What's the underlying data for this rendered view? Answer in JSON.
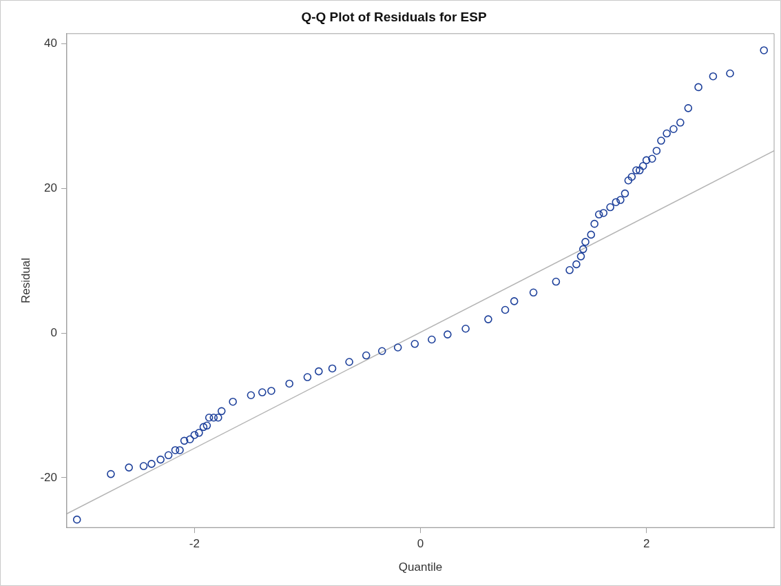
{
  "chart_data": {
    "type": "scatter",
    "title": "Q-Q Plot of Residuals for ESP",
    "xlabel": "Quantile",
    "ylabel": "Residual",
    "xlim": [
      -3.13,
      3.13
    ],
    "ylim": [
      -26.9,
      41.4
    ],
    "xticks": [
      -2,
      0,
      2
    ],
    "yticks": [
      -20,
      0,
      20,
      40
    ],
    "grid": false,
    "legend": false,
    "series": [
      {
        "color": "#1c3f9a",
        "marker": "circle",
        "x": [
          -3.04,
          -2.74,
          -2.58,
          -2.45,
          -2.38,
          -2.3,
          -2.23,
          -2.17,
          -2.13,
          -2.09,
          -2.04,
          -2.0,
          -1.96,
          -1.92,
          -1.89,
          -1.87,
          -1.83,
          -1.79,
          -1.76,
          -1.66,
          -1.5,
          -1.4,
          -1.32,
          -1.16,
          -1.0,
          -0.9,
          -0.78,
          -0.63,
          -0.48,
          -0.34,
          -0.2,
          -0.05,
          0.1,
          0.24,
          0.4,
          0.6,
          0.75,
          0.83,
          1.0,
          1.2,
          1.32,
          1.38,
          1.42,
          1.44,
          1.46,
          1.51,
          1.54,
          1.58,
          1.62,
          1.68,
          1.73,
          1.77,
          1.81,
          1.84,
          1.87,
          1.91,
          1.94,
          1.97,
          2.0,
          2.05,
          2.09,
          2.13,
          2.18,
          2.24,
          2.3,
          2.37,
          2.46,
          2.59,
          2.74,
          3.04
        ],
        "values": [
          -25.8,
          -19.5,
          -18.6,
          -18.4,
          -18.1,
          -17.5,
          -16.9,
          -16.2,
          -16.2,
          -14.9,
          -14.7,
          -14.1,
          -13.8,
          -13.0,
          -12.8,
          -11.7,
          -11.7,
          -11.7,
          -10.8,
          -9.5,
          -8.6,
          -8.2,
          -8.0,
          -7.0,
          -6.1,
          -5.3,
          -4.9,
          -4.0,
          -3.1,
          -2.5,
          -2.0,
          -1.5,
          -0.9,
          -0.2,
          0.6,
          1.9,
          3.2,
          4.4,
          5.6,
          7.1,
          8.7,
          9.5,
          10.6,
          11.6,
          12.6,
          13.6,
          15.1,
          16.4,
          16.6,
          17.4,
          18.1,
          18.4,
          19.3,
          21.1,
          21.6,
          22.5,
          22.5,
          23.1,
          23.9,
          24.1,
          25.2,
          26.6,
          27.6,
          28.2,
          29.1,
          31.1,
          34.0,
          35.5,
          35.9,
          39.1
        ]
      },
      {
        "type": "line",
        "color": "#b4b4b4",
        "line_style": "solid",
        "x": [
          -3.13,
          3.13
        ],
        "values": [
          -25.0,
          25.2
        ]
      }
    ]
  }
}
